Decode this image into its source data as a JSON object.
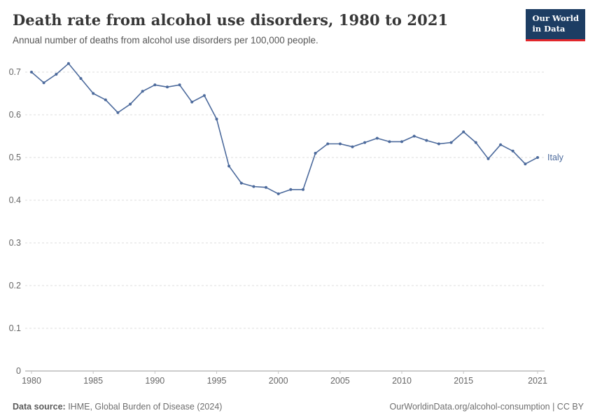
{
  "header": {
    "title": "Death rate from alcohol use disorders, 1980 to 2021",
    "subtitle": "Annual number of deaths from alcohol use disorders per 100,000 people.",
    "logo": {
      "line1": "Our World",
      "line2": "in Data"
    }
  },
  "footer": {
    "source_label": "Data source:",
    "source_text": " IHME, Global Burden of Disease (2024)",
    "right_text": "OurWorldinData.org/alcohol-consumption | CC BY"
  },
  "chart_data": {
    "type": "line",
    "title": "Death rate from alcohol use disorders, 1980 to 2021",
    "subtitle": "Annual number of deaths from alcohol use disorders per 100,000 people.",
    "xlabel": "",
    "ylabel": "",
    "xlim": [
      1980,
      2021
    ],
    "ylim": [
      0,
      0.72
    ],
    "grid": "horizontal-dashed",
    "legend_position": "end-of-line-label",
    "x_ticks": [
      1980,
      1985,
      1990,
      1995,
      2000,
      2005,
      2010,
      2015,
      2021
    ],
    "y_ticks": [
      0,
      0.1,
      0.2,
      0.3,
      0.4,
      0.5,
      0.6,
      0.7
    ],
    "colors": {
      "line": "#4C6A9C",
      "grid": "#dcdcdc",
      "axis": "#999999",
      "tick_text": "#666666"
    },
    "series": [
      {
        "name": "Italy",
        "x": [
          1980,
          1981,
          1982,
          1983,
          1984,
          1985,
          1986,
          1987,
          1988,
          1989,
          1990,
          1991,
          1992,
          1993,
          1994,
          1995,
          1996,
          1997,
          1998,
          1999,
          2000,
          2001,
          2002,
          2003,
          2004,
          2005,
          2006,
          2007,
          2008,
          2009,
          2010,
          2011,
          2012,
          2013,
          2014,
          2015,
          2016,
          2017,
          2018,
          2019,
          2020,
          2021
        ],
        "values": [
          0.7,
          0.675,
          0.695,
          0.72,
          0.685,
          0.65,
          0.635,
          0.605,
          0.625,
          0.655,
          0.67,
          0.665,
          0.67,
          0.63,
          0.645,
          0.59,
          0.48,
          0.44,
          0.432,
          0.43,
          0.415,
          0.425,
          0.425,
          0.51,
          0.532,
          0.532,
          0.525,
          0.535,
          0.545,
          0.537,
          0.537,
          0.55,
          0.54,
          0.532,
          0.535,
          0.56,
          0.535,
          0.497,
          0.53,
          0.515,
          0.485,
          0.5
        ]
      }
    ]
  }
}
